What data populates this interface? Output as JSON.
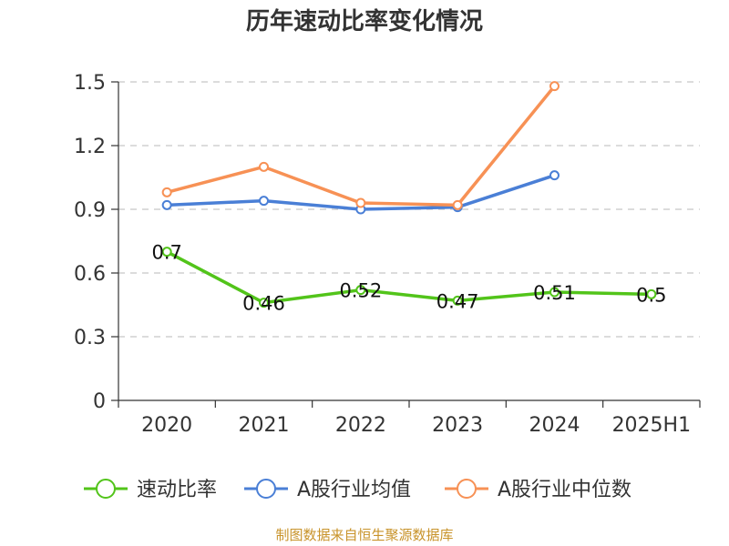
{
  "chart_data": {
    "type": "line",
    "title": "历年速动比率变化情况",
    "categories": [
      "2020",
      "2021",
      "2022",
      "2023",
      "2024",
      "2025H1"
    ],
    "ylim": [
      0,
      1.5
    ],
    "yticks": [
      "0",
      "0.3",
      "0.6",
      "0.9",
      "1.2",
      "1.5"
    ],
    "grid": true,
    "legend_position": "bottom",
    "series": [
      {
        "name": "速动比率",
        "color": "#52c41a",
        "values": [
          0.7,
          0.46,
          0.52,
          0.47,
          0.51,
          0.5
        ],
        "labels": [
          "0.7",
          "0.46",
          "0.52",
          "0.47",
          "0.51",
          "0.5"
        ]
      },
      {
        "name": "A股行业均值",
        "color": "#4a7fd6",
        "values": [
          0.92,
          0.94,
          0.9,
          0.91,
          1.06,
          null
        ]
      },
      {
        "name": "A股行业中位数",
        "color": "#f79155",
        "values": [
          0.98,
          1.1,
          0.93,
          0.92,
          1.48,
          null
        ]
      }
    ]
  },
  "source_note": "制图数据来自恒生聚源数据库",
  "source_color": "#c8932a"
}
